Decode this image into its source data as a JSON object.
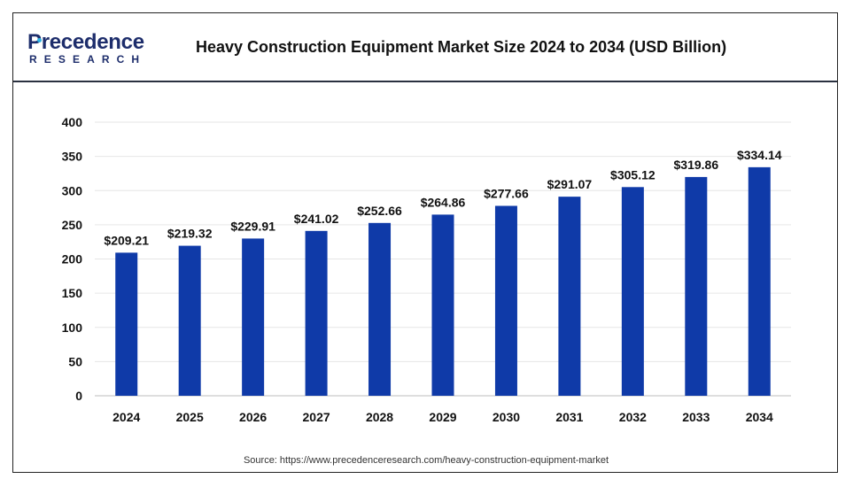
{
  "logo": {
    "main": "Precedence",
    "sub": "RESEARCH"
  },
  "title": "Heavy Construction Equipment Market Size 2024 to 2034 (USD Billion)",
  "source": "Source: https://www.precedenceresearch.com/heavy-construction-equipment-market",
  "colors": {
    "bar": "#0f3aa8",
    "brand": "#1d2d6b",
    "accent": "#2fb1e3",
    "grid": "#e6e6e6",
    "axis": "#bdbdbd"
  },
  "chart_data": {
    "type": "bar",
    "title": "Heavy Construction Equipment Market Size 2024 to 2034 (USD Billion)",
    "xlabel": "",
    "ylabel": "",
    "categories": [
      "2024",
      "2025",
      "2026",
      "2027",
      "2028",
      "2029",
      "2030",
      "2031",
      "2032",
      "2033",
      "2034"
    ],
    "values": [
      209.21,
      219.32,
      229.91,
      241.02,
      252.66,
      264.86,
      277.66,
      291.07,
      305.12,
      319.86,
      334.14
    ],
    "data_labels": [
      "$209.21",
      "$219.32",
      "$229.91",
      "$241.02",
      "$252.66",
      "$264.86",
      "$277.66",
      "$291.07",
      "$305.12",
      "$319.86",
      "$334.14"
    ],
    "yticks": [
      0,
      50,
      100,
      150,
      200,
      250,
      300,
      350,
      400
    ],
    "ylim": [
      0,
      400
    ],
    "grid": true,
    "legend": "none"
  }
}
